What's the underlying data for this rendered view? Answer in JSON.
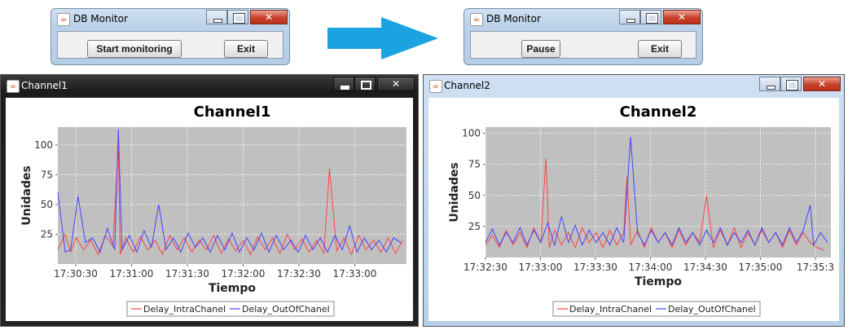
{
  "windows": {
    "db_left": {
      "title": "DB Monitor",
      "primary_button": "Start monitoring",
      "exit_button": "Exit"
    },
    "db_right": {
      "title": "DB Monitor",
      "primary_button": "Pause",
      "exit_button": "Exit"
    },
    "chart_left": {
      "title": "Channel1"
    },
    "chart_right": {
      "title": "Channel2"
    }
  },
  "colors": {
    "intra": "#ff4444",
    "out": "#4444ff",
    "plot_bg": "#c0c0c0",
    "arrow": "#1aa3e0"
  },
  "legend": {
    "intra": "Delay_IntraChanel",
    "out": "Delay_OutOfChanel"
  },
  "chart_data": [
    {
      "type": "line",
      "title": "Channel1",
      "xlabel": "Tiempo",
      "ylabel": "Unidades",
      "xticks": [
        "17:30:30",
        "17:31:00",
        "17:31:30",
        "17:32:00",
        "17:32:30",
        "17:33:00"
      ],
      "yticks": [
        25,
        50,
        75,
        100
      ],
      "xlim": [
        0,
        190
      ],
      "ylim": [
        0,
        115
      ],
      "grid": true,
      "legend_position": "bottom",
      "series": [
        {
          "name": "Delay_IntraChanel",
          "x": [
            0,
            4,
            7,
            10,
            14,
            18,
            22,
            26,
            30,
            33,
            34,
            37,
            41,
            45,
            49,
            53,
            57,
            61,
            65,
            69,
            73,
            77,
            81,
            85,
            89,
            93,
            97,
            101,
            105,
            109,
            113,
            117,
            121,
            125,
            129,
            133,
            137,
            141,
            145,
            148,
            152,
            156,
            160,
            164,
            168,
            172,
            176,
            180,
            184,
            188
          ],
          "y": [
            12,
            25,
            10,
            22,
            12,
            20,
            8,
            24,
            15,
            100,
            8,
            22,
            10,
            23,
            12,
            20,
            8,
            24,
            12,
            22,
            10,
            20,
            12,
            24,
            9,
            21,
            11,
            20,
            8,
            23,
            12,
            22,
            9,
            25,
            12,
            21,
            10,
            20,
            9,
            80,
            11,
            22,
            8,
            24,
            12,
            20,
            10,
            22,
            9,
            20
          ]
        },
        {
          "name": "Delay_OutOfChanel",
          "x": [
            0,
            4,
            7,
            11,
            15,
            19,
            23,
            27,
            31,
            33,
            35,
            39,
            43,
            47,
            51,
            55,
            59,
            63,
            67,
            71,
            75,
            79,
            83,
            87,
            91,
            95,
            99,
            103,
            107,
            111,
            115,
            119,
            123,
            127,
            131,
            135,
            139,
            143,
            147,
            151,
            155,
            159,
            163,
            167,
            171,
            175,
            179,
            183,
            187
          ],
          "y": [
            60,
            10,
            12,
            57,
            18,
            22,
            10,
            30,
            12,
            113,
            12,
            24,
            10,
            28,
            14,
            50,
            12,
            22,
            10,
            26,
            14,
            22,
            10,
            24,
            12,
            26,
            10,
            22,
            12,
            26,
            10,
            24,
            12,
            20,
            10,
            24,
            12,
            22,
            10,
            24,
            12,
            32,
            10,
            22,
            12,
            20,
            10,
            22,
            18
          ]
        }
      ]
    },
    {
      "type": "line",
      "title": "Channel2",
      "xlabel": "Tiempo",
      "ylabel": "Unidades",
      "xticks": [
        "17:32:30",
        "17:33:00",
        "17:33:30",
        "17:34:00",
        "17:34:30",
        "17:35:00",
        "17:35:3"
      ],
      "yticks": [
        25,
        50,
        75,
        100
      ],
      "xlim": [
        0,
        200
      ],
      "ylim": [
        0,
        105
      ],
      "grid": true,
      "legend_position": "bottom",
      "series": [
        {
          "name": "Delay_IntraChanel",
          "x": [
            0,
            4,
            8,
            12,
            16,
            20,
            24,
            28,
            32,
            35,
            37,
            40,
            44,
            48,
            52,
            56,
            60,
            64,
            68,
            72,
            76,
            80,
            82,
            84,
            88,
            92,
            96,
            100,
            104,
            108,
            112,
            116,
            120,
            124,
            128,
            132,
            136,
            140,
            144,
            148,
            152,
            156,
            160,
            164,
            168,
            172,
            176,
            180,
            184,
            188,
            192,
            196
          ],
          "y": [
            10,
            18,
            8,
            22,
            10,
            20,
            8,
            24,
            12,
            80,
            8,
            22,
            10,
            20,
            8,
            24,
            12,
            20,
            8,
            22,
            10,
            20,
            65,
            10,
            22,
            8,
            24,
            12,
            20,
            8,
            22,
            10,
            20,
            12,
            50,
            8,
            22,
            10,
            24,
            8,
            20,
            10,
            22,
            12,
            20,
            8,
            22,
            10,
            20,
            12,
            8,
            6
          ]
        },
        {
          "name": "Delay_OutOfChanel",
          "x": [
            0,
            4,
            8,
            12,
            16,
            20,
            24,
            28,
            32,
            36,
            40,
            44,
            48,
            52,
            56,
            60,
            64,
            68,
            72,
            76,
            80,
            84,
            88,
            92,
            96,
            100,
            104,
            108,
            112,
            116,
            120,
            124,
            128,
            132,
            136,
            140,
            144,
            148,
            152,
            156,
            160,
            164,
            168,
            172,
            176,
            180,
            184,
            188,
            190,
            194,
            198
          ],
          "y": [
            12,
            23,
            10,
            20,
            12,
            24,
            10,
            22,
            12,
            28,
            10,
            33,
            12,
            26,
            10,
            22,
            12,
            20,
            10,
            24,
            12,
            97,
            20,
            10,
            22,
            12,
            20,
            10,
            24,
            12,
            20,
            10,
            22,
            12,
            24,
            10,
            20,
            12,
            22,
            10,
            24,
            12,
            20,
            10,
            24,
            12,
            22,
            42,
            10,
            20,
            12
          ]
        }
      ]
    }
  ]
}
